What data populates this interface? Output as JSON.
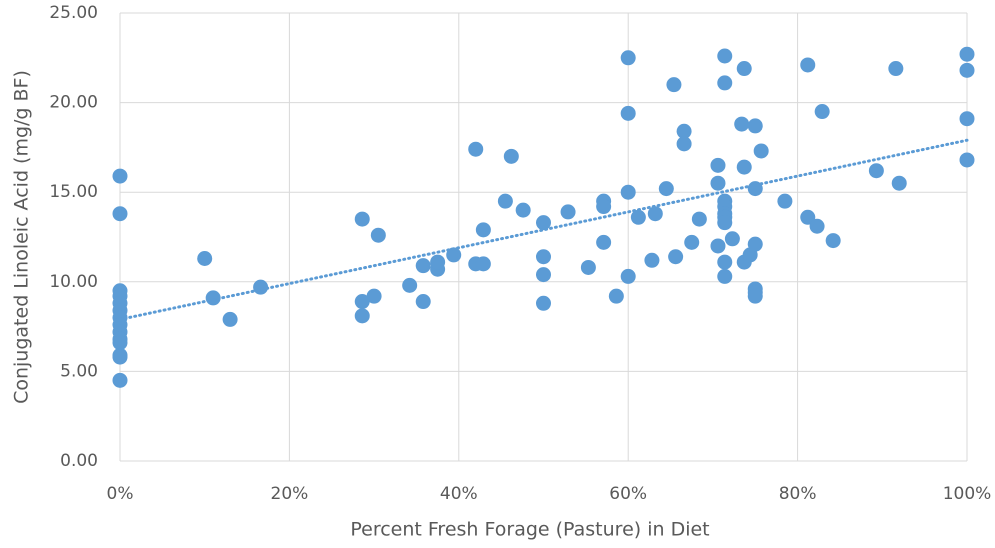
{
  "chart_data": {
    "type": "scatter",
    "x_label": "Percent Fresh Forage (Pasture) in Diet",
    "y_label": "Conjugated Linoleic Acid (mg/g BF)",
    "color": "#5b9bd5",
    "grid": true,
    "x": [
      0,
      0,
      0,
      0,
      0,
      0,
      0,
      0,
      0,
      0,
      0,
      0,
      0,
      0,
      10,
      11,
      13,
      16.6,
      28.6,
      28.6,
      28.6,
      30,
      30.5,
      34.2,
      35.8,
      35.8,
      37.5,
      37.5,
      39.4,
      42,
      42,
      42.9,
      42.9,
      45.5,
      46.2,
      47.6,
      50,
      50,
      50,
      50,
      52.9,
      55.3,
      57.1,
      57.1,
      57.1,
      58.6,
      60,
      60,
      60,
      60,
      61.2,
      62.8,
      63.2,
      64.5,
      65.4,
      65.6,
      66.6,
      66.6,
      67.5,
      68.4,
      70.6,
      70.6,
      70.6,
      71.4,
      71.4,
      71.4,
      71.4,
      71.4,
      71.4,
      71.4,
      71.4,
      71.4,
      72.3,
      73.4,
      73.7,
      73.7,
      73.7,
      74.4,
      75,
      75,
      75,
      75,
      75,
      75,
      75.7,
      78.5,
      81.2,
      81.2,
      82.3,
      82.9,
      84.2,
      89.3,
      91.6,
      92,
      100,
      100,
      100,
      100
    ],
    "values": [
      15.9,
      13.8,
      9.5,
      9.2,
      8.8,
      8.4,
      8.0,
      7.6,
      7.2,
      6.8,
      6.6,
      5.9,
      5.8,
      4.5,
      11.3,
      9.1,
      7.9,
      9.7,
      13.5,
      8.9,
      8.1,
      9.2,
      12.6,
      9.8,
      10.9,
      8.9,
      10.7,
      11.1,
      11.5,
      17.4,
      11.0,
      11.0,
      12.9,
      14.5,
      17.0,
      14.0,
      13.3,
      11.4,
      10.4,
      8.8,
      13.9,
      10.8,
      14.5,
      14.2,
      12.2,
      9.2,
      22.5,
      19.4,
      15.0,
      10.3,
      13.6,
      11.2,
      13.8,
      15.2,
      21.0,
      11.4,
      18.4,
      17.7,
      12.2,
      13.5,
      16.5,
      15.5,
      12.0,
      22.6,
      21.1,
      14.5,
      14.2,
      13.8,
      13.6,
      13.3,
      11.1,
      10.3,
      12.4,
      18.8,
      21.9,
      16.4,
      11.1,
      11.5,
      18.7,
      15.2,
      12.1,
      9.6,
      9.4,
      9.2,
      17.3,
      14.5,
      22.1,
      13.6,
      13.1,
      19.5,
      12.3,
      16.2,
      21.9,
      15.5,
      22.7,
      21.8,
      19.1,
      16.8
    ],
    "trendline": {
      "x": [
        0,
        100
      ],
      "values": [
        7.9,
        17.9
      ]
    },
    "xlim": [
      0,
      100
    ],
    "xticks": [
      {
        "value": 0,
        "label": "0%"
      },
      {
        "value": 20,
        "label": "20%"
      },
      {
        "value": 40,
        "label": "40%"
      },
      {
        "value": 60,
        "label": "60%"
      },
      {
        "value": 80,
        "label": "80%"
      },
      {
        "value": 100,
        "label": "100%"
      }
    ],
    "ylim": [
      0,
      25
    ],
    "yticks": [
      {
        "value": 0,
        "label": "0.00"
      },
      {
        "value": 5,
        "label": "5.00"
      },
      {
        "value": 10,
        "label": "10.00"
      },
      {
        "value": 15,
        "label": "15.00"
      },
      {
        "value": 20,
        "label": "20.00"
      },
      {
        "value": 25,
        "label": "25.00"
      }
    ]
  }
}
